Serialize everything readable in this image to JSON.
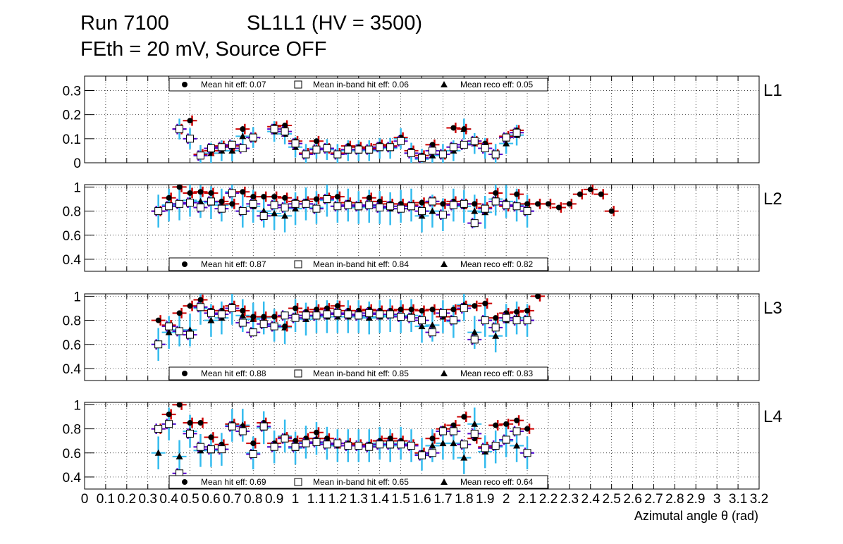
{
  "header": {
    "run": "Run 7100",
    "chamber": "SL1L1 (HV = 3500)",
    "conditions": "FEth = 20 mV, Source OFF"
  },
  "colors": {
    "hit": "#cc0000",
    "inband": "#5500cc",
    "reco": "#33bbee",
    "grid": "#000000"
  },
  "chart_data": {
    "type": "scatter",
    "xlabel": "Azimutal angle θ (rad)",
    "xlim": [
      0,
      3.2
    ],
    "xticks": [
      "0",
      "0.1",
      "0.2",
      "0.3",
      "0.4",
      "0.5",
      "0.6",
      "0.7",
      "0.8",
      "0.9",
      "1",
      "1.1",
      "1.2",
      "1.3",
      "1.4",
      "1.5",
      "1.6",
      "1.7",
      "1.8",
      "1.9",
      "2",
      "2.1",
      "2.2",
      "2.3",
      "2.4",
      "2.5",
      "2.6",
      "2.7",
      "2.8",
      "2.9",
      "3",
      "3.1",
      "3.2"
    ],
    "x": [
      0.35,
      0.4,
      0.45,
      0.5,
      0.55,
      0.6,
      0.65,
      0.7,
      0.75,
      0.8,
      0.85,
      0.9,
      0.95,
      1.0,
      1.05,
      1.1,
      1.15,
      1.2,
      1.25,
      1.3,
      1.35,
      1.4,
      1.45,
      1.5,
      1.55,
      1.6,
      1.65,
      1.7,
      1.75,
      1.8,
      1.85,
      1.9,
      1.95,
      2.0,
      2.05,
      2.1,
      2.15,
      2.2,
      2.25,
      2.3,
      2.35,
      2.4,
      2.45,
      2.5,
      2.55,
      2.6,
      2.65
    ],
    "panels": [
      {
        "layer": "L1",
        "ylim": [
          0,
          0.36
        ],
        "yticks": [
          "0",
          "0.1",
          "0.2",
          "0.3"
        ],
        "legend_position": "top",
        "legend": {
          "hit": "Mean hit  eff: 0.07",
          "inband": "Mean in-band hit eff: 0.06",
          "reco": "Mean reco eff: 0.05"
        },
        "series": [
          {
            "name": "hit",
            "values": [
              null,
              null,
              0.14,
              0.175,
              0.035,
              0.05,
              0.07,
              0.07,
              0.14,
              0.105,
              null,
              0.15,
              0.155,
              0.09,
              0.04,
              0.09,
              0.06,
              0.04,
              0.07,
              0.065,
              0.06,
              0.075,
              0.07,
              0.105,
              0.05,
              0.03,
              0.075,
              0.035,
              0.145,
              0.14,
              0.09,
              0.08,
              0.035,
              0.11,
              0.135,
              null,
              null,
              null,
              null,
              null,
              null,
              null,
              null,
              null,
              null,
              null,
              null
            ]
          },
          {
            "name": "inband",
            "values": [
              null,
              null,
              0.14,
              0.1,
              0.03,
              0.06,
              0.065,
              0.075,
              0.06,
              0.105,
              null,
              0.14,
              0.13,
              0.08,
              0.035,
              0.055,
              0.06,
              0.035,
              0.055,
              0.055,
              0.055,
              0.065,
              0.065,
              0.09,
              0.04,
              0.02,
              0.05,
              0.035,
              0.065,
              0.075,
              0.09,
              0.06,
              0.035,
              0.105,
              0.125,
              null,
              null,
              null,
              null,
              null,
              null,
              null,
              null,
              null,
              null,
              null,
              null
            ]
          },
          {
            "name": "reco",
            "values": [
              null,
              null,
              0.14,
              0.1,
              0.03,
              0.04,
              0.05,
              0.05,
              0.11,
              0.105,
              null,
              0.13,
              0.12,
              0.065,
              0.035,
              0.06,
              0.055,
              0.035,
              0.05,
              0.05,
              0.05,
              0.06,
              0.06,
              0.1,
              0.04,
              0.015,
              0.03,
              0.035,
              0.05,
              0.14,
              0.08,
              0.06,
              0.035,
              0.08,
              0.115,
              null,
              null,
              null,
              null,
              null,
              null,
              null,
              null,
              null,
              null,
              null,
              null
            ]
          }
        ]
      },
      {
        "layer": "L2",
        "ylim": [
          0.3,
          1.02
        ],
        "yticks": [
          "0.4",
          "0.6",
          "0.8",
          "1"
        ],
        "legend_position": "bottom",
        "legend": {
          "hit": "Mean hit  eff: 0.87",
          "inband": "Mean in-band hit eff: 0.84",
          "reco": "Mean reco eff: 0.82"
        },
        "series": [
          {
            "name": "hit",
            "values": [
              0.8,
              0.91,
              1.0,
              0.95,
              0.96,
              0.95,
              0.88,
              0.86,
              0.96,
              0.92,
              0.92,
              0.92,
              0.91,
              0.88,
              0.88,
              0.9,
              0.91,
              0.92,
              0.87,
              0.85,
              0.91,
              0.88,
              0.86,
              0.86,
              0.85,
              0.87,
              0.88,
              0.86,
              0.88,
              0.86,
              0.86,
              0.83,
              0.95,
              0.84,
              0.94,
              0.86,
              0.86,
              0.86,
              0.83,
              0.86,
              0.94,
              0.98,
              0.94,
              0.8,
              null,
              null,
              null
            ]
          },
          {
            "name": "inband",
            "values": [
              0.8,
              0.84,
              0.86,
              0.87,
              0.83,
              0.88,
              0.82,
              0.95,
              0.8,
              0.86,
              0.76,
              0.85,
              0.83,
              0.86,
              0.86,
              0.82,
              0.9,
              0.84,
              0.85,
              0.84,
              0.85,
              0.83,
              0.84,
              0.82,
              0.84,
              0.8,
              0.88,
              0.77,
              0.85,
              0.86,
              0.7,
              0.82,
              0.88,
              0.85,
              0.84,
              0.8,
              null,
              null,
              null,
              null,
              null,
              null,
              null,
              null,
              null,
              null,
              null
            ]
          },
          {
            "name": "reco",
            "values": [
              0.8,
              0.85,
              0.86,
              0.89,
              0.88,
              0.87,
              0.85,
              0.96,
              0.8,
              0.84,
              0.8,
              0.78,
              0.76,
              0.82,
              0.86,
              0.83,
              0.89,
              0.84,
              0.85,
              0.83,
              0.84,
              0.83,
              0.82,
              0.84,
              0.85,
              0.76,
              0.8,
              0.77,
              0.85,
              0.84,
              0.8,
              0.79,
              0.9,
              0.88,
              0.85,
              0.8,
              null,
              null,
              null,
              null,
              null,
              null,
              null,
              null,
              null,
              null,
              null
            ]
          }
        ]
      },
      {
        "layer": "L3",
        "ylim": [
          0.3,
          1.02
        ],
        "yticks": [
          "0.4",
          "0.6",
          "0.8",
          "1"
        ],
        "legend_position": "bottom",
        "legend": {
          "hit": "Mean hit  eff: 0.88",
          "inband": "Mean in-band hit eff: 0.85",
          "reco": "Mean reco eff: 0.83"
        },
        "series": [
          {
            "name": "hit",
            "values": [
              0.8,
              0.76,
              0.86,
              0.92,
              0.97,
              0.88,
              0.88,
              0.92,
              0.88,
              0.83,
              0.83,
              0.83,
              0.75,
              0.9,
              0.87,
              0.89,
              0.9,
              0.92,
              0.88,
              0.88,
              0.89,
              0.88,
              0.88,
              0.89,
              0.89,
              0.88,
              0.89,
              0.83,
              0.89,
              0.92,
              0.92,
              0.94,
              0.82,
              0.86,
              0.87,
              0.88,
              1.0,
              null,
              null,
              null,
              null,
              null,
              null,
              null,
              null,
              null,
              null
            ]
          },
          {
            "name": "inband",
            "values": [
              0.6,
              0.75,
              0.71,
              0.68,
              0.91,
              0.86,
              0.85,
              0.9,
              0.78,
              0.7,
              0.77,
              0.75,
              0.84,
              0.82,
              0.84,
              0.84,
              0.85,
              0.86,
              0.85,
              0.84,
              0.86,
              0.85,
              0.85,
              0.83,
              0.82,
              0.8,
              0.7,
              0.86,
              0.8,
              0.9,
              0.64,
              0.8,
              0.74,
              0.82,
              0.8,
              0.8,
              null,
              null,
              null,
              null,
              null,
              null,
              null,
              null,
              null,
              null,
              null
            ]
          },
          {
            "name": "reco",
            "values": [
              0.6,
              0.7,
              0.72,
              0.72,
              0.9,
              0.8,
              0.82,
              0.9,
              0.84,
              0.81,
              0.82,
              0.76,
              0.74,
              0.84,
              0.81,
              0.83,
              0.83,
              0.83,
              0.83,
              0.83,
              0.82,
              0.83,
              0.84,
              0.83,
              0.84,
              0.75,
              0.76,
              0.83,
              0.79,
              0.93,
              0.7,
              0.8,
              0.67,
              0.8,
              0.82,
              0.8,
              null,
              null,
              null,
              null,
              null,
              null,
              null,
              null,
              null,
              null,
              null
            ]
          }
        ]
      },
      {
        "layer": "L4",
        "ylim": [
          0.3,
          1.02
        ],
        "yticks": [
          "0.4",
          "0.6",
          "0.8",
          "1"
        ],
        "legend_position": "bottom",
        "legend": {
          "hit": "Mean hit  eff: 0.69",
          "inband": "Mean in-band hit eff: 0.65",
          "reco": "Mean reco eff: 0.64"
        },
        "series": [
          {
            "name": "hit",
            "values": [
              0.8,
              0.92,
              1.0,
              0.85,
              0.85,
              0.73,
              0.67,
              0.84,
              0.82,
              0.68,
              0.85,
              0.68,
              0.73,
              0.7,
              0.72,
              0.77,
              0.72,
              0.68,
              0.68,
              0.67,
              0.67,
              0.7,
              0.72,
              0.7,
              0.67,
              0.6,
              0.72,
              0.8,
              0.83,
              0.9,
              0.72,
              0.65,
              0.83,
              0.84,
              0.87,
              0.8,
              null,
              null,
              null,
              null,
              null,
              null,
              null,
              null,
              null,
              null,
              null
            ]
          },
          {
            "name": "inband",
            "values": [
              0.8,
              0.84,
              0.43,
              0.76,
              0.65,
              0.63,
              0.63,
              0.82,
              0.78,
              0.59,
              0.82,
              0.65,
              0.72,
              0.65,
              0.68,
              0.69,
              0.67,
              0.68,
              0.66,
              0.66,
              0.65,
              0.67,
              0.67,
              0.67,
              0.66,
              0.58,
              0.6,
              0.78,
              0.78,
              0.67,
              0.76,
              0.64,
              0.66,
              0.71,
              0.78,
              0.6,
              null,
              null,
              null,
              null,
              null,
              null,
              null,
              null,
              null,
              null,
              null
            ]
          },
          {
            "name": "reco",
            "values": [
              0.6,
              0.84,
              0.57,
              0.78,
              0.62,
              0.62,
              0.63,
              0.83,
              0.83,
              0.6,
              0.81,
              0.65,
              0.74,
              0.64,
              0.69,
              0.72,
              0.68,
              0.66,
              0.66,
              0.66,
              0.66,
              0.68,
              0.66,
              0.68,
              0.66,
              0.59,
              0.66,
              0.68,
              0.68,
              0.56,
              0.84,
              0.61,
              0.65,
              0.7,
              0.66,
              0.6,
              null,
              null,
              null,
              null,
              null,
              null,
              null,
              null,
              null,
              null,
              null
            ]
          }
        ]
      }
    ]
  }
}
